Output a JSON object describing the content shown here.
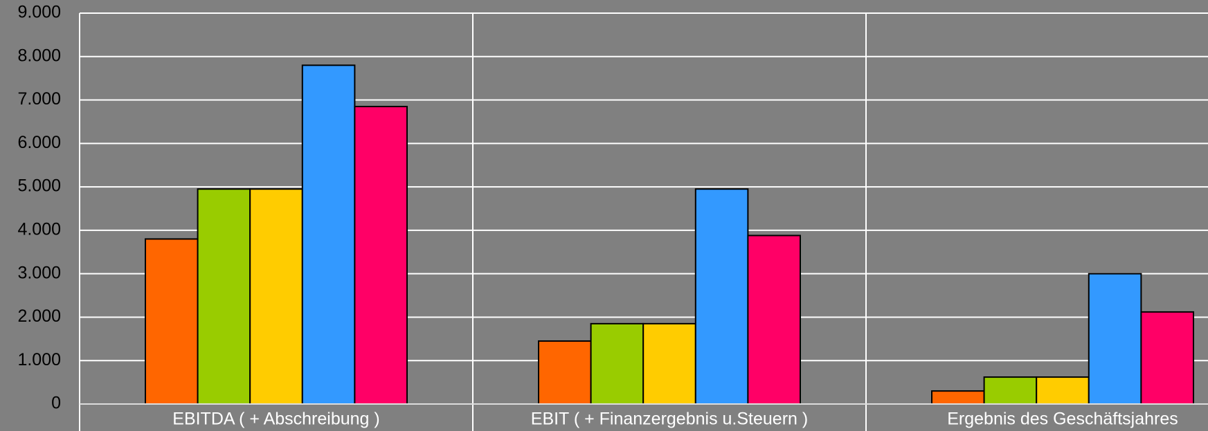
{
  "chart_data": {
    "type": "bar",
    "categories": [
      "EBITDA ( + Abschreibung )",
      "EBIT ( + Finanzergebnis u.Steuern )",
      "Ergebnis des Geschäftsjahres"
    ],
    "series": [
      {
        "color": "#ff6600",
        "values": [
          3800,
          1450,
          300
        ]
      },
      {
        "color": "#99cc00",
        "values": [
          4950,
          1850,
          620
        ]
      },
      {
        "color": "#ffcc00",
        "values": [
          4950,
          1850,
          620
        ]
      },
      {
        "color": "#3399ff",
        "values": [
          7800,
          4950,
          3000
        ]
      },
      {
        "color": "#ff0066",
        "values": [
          6850,
          3880,
          2120
        ]
      }
    ],
    "ylim": [
      0,
      9000
    ],
    "yticks": [
      0,
      {
        "value": 1000,
        "label": "1.000"
      },
      {
        "value": 2000,
        "label": "2.000"
      },
      {
        "value": 3000,
        "label": "3.000"
      },
      {
        "value": 4000,
        "label": "4.000"
      },
      {
        "value": 5000,
        "label": "5.000"
      },
      {
        "value": 6000,
        "label": "6.000"
      },
      {
        "value": 7000,
        "label": "7.000"
      },
      {
        "value": 8000,
        "label": "8.000"
      },
      {
        "value": 9000,
        "label": "9.000"
      }
    ],
    "grid": true
  }
}
